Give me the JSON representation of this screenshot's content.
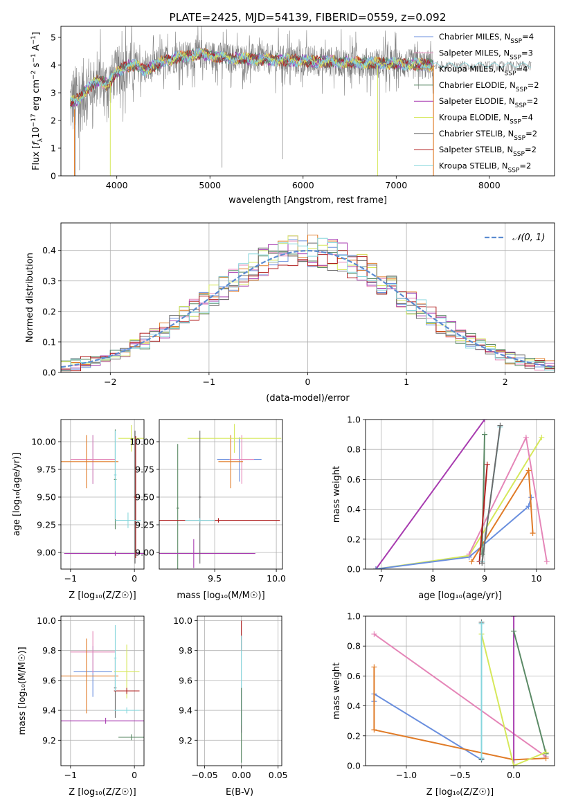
{
  "colors": {
    "Chabrier MILES": "#6a8fde",
    "Salpeter MILES": "#e586b8",
    "Kroupa MILES": "#e07b27",
    "Chabrier ELODIE": "#5b8a66",
    "Salpeter ELODIE": "#a83cb0",
    "Kroupa ELODIE": "#d6e85a",
    "Chabrier STELIB": "#6b6b6b",
    "Salpeter STELIB": "#b01f1f",
    "Kroupa STELIB": "#86d6dc",
    "data": "#808080",
    "gaussian": "#5b8bd0",
    "grid": "#b0b0b0"
  },
  "chart_data": [
    {
      "id": "spectrum",
      "type": "line",
      "title": "PLATE=2425, MJD=54139, FIBERID=0559, z=0.092",
      "xlabel": "wavelength [Angstrom, rest frame]",
      "ylabel": "Flux [f_λ 10^-17 erg cm^-2 s^-1 A^-1]",
      "xlim": [
        3400,
        8700
      ],
      "ylim": [
        0,
        5.4
      ],
      "xticks": [
        "4000",
        "5000",
        "6000",
        "7000",
        "8000"
      ],
      "yticks": [
        "0",
        "1",
        "2",
        "3",
        "4",
        "5"
      ],
      "legend_position": "upper right",
      "model_continuum_x": [
        3500,
        3600,
        3700,
        3800,
        3900,
        4000,
        4100,
        4200,
        4300,
        4500,
        4700,
        4900,
        5200,
        5600,
        6000,
        6500,
        7000,
        7400
      ],
      "model_continuum_y": [
        2.65,
        2.8,
        3.2,
        3.45,
        3.3,
        3.75,
        3.95,
        4.0,
        3.8,
        4.15,
        4.3,
        4.4,
        4.25,
        4.2,
        4.15,
        4.1,
        4.05,
        4.0
      ],
      "series": [
        {
          "name": "Chabrier MILES, N",
          "sub": "SSP",
          "suffix": "=4",
          "model": "Chabrier MILES"
        },
        {
          "name": "Salpeter MILES, N",
          "sub": "SSP",
          "suffix": "=3",
          "model": "Salpeter MILES"
        },
        {
          "name": "Kroupa MILES, N",
          "sub": "SSP",
          "suffix": "=4",
          "model": "Kroupa MILES"
        },
        {
          "name": "Chabrier ELODIE, N",
          "sub": "SSP",
          "suffix": "=2",
          "model": "Chabrier ELODIE"
        },
        {
          "name": "Salpeter ELODIE, N",
          "sub": "SSP",
          "suffix": "=2",
          "model": "Salpeter ELODIE"
        },
        {
          "name": "Kroupa ELODIE, N",
          "sub": "SSP",
          "suffix": "=4",
          "model": "Kroupa ELODIE"
        },
        {
          "name": "Chabrier STELIB, N",
          "sub": "SSP",
          "suffix": "=2",
          "model": "Chabrier STELIB"
        },
        {
          "name": "Salpeter STELIB, N",
          "sub": "SSP",
          "suffix": "=2",
          "model": "Salpeter STELIB"
        },
        {
          "name": "Kroupa STELIB, N",
          "sub": "SSP",
          "suffix": "=2",
          "model": "Kroupa STELIB"
        }
      ]
    },
    {
      "id": "residuals",
      "type": "histogram",
      "xlabel": "(data-model)/error",
      "ylabel": "Normed distribution",
      "xlim": [
        -2.5,
        2.5
      ],
      "ylim": [
        0,
        0.49
      ],
      "xticks": [
        "−2",
        "−1",
        "0",
        "1",
        "2"
      ],
      "yticks": [
        "0.0",
        "0.1",
        "0.2",
        "0.3",
        "0.4"
      ],
      "bin_width": 0.1,
      "legend": "𝒩(0, 1)",
      "legend_position": "upper right",
      "gaussian": {
        "mean": 0,
        "sigma": 1
      }
    },
    {
      "id": "age-vs-Z",
      "type": "errorbar",
      "xlabel": "Z [log₁₀(Z/Z☉)]",
      "ylabel": "age  [log₁₀(age/yr)]",
      "xlim": [
        -1.15,
        0.15
      ],
      "ylim": [
        8.85,
        10.2
      ],
      "xticks": [
        {
          "v": -1,
          "t": "−1"
        },
        {
          "v": 0,
          "t": "0"
        }
      ],
      "yticks": [
        {
          "v": 9.0,
          "t": "9.00"
        },
        {
          "v": 9.25,
          "t": "9.25"
        },
        {
          "v": 9.5,
          "t": "9.50"
        },
        {
          "v": 9.75,
          "t": "9.75"
        },
        {
          "v": 10.0,
          "t": "10.00"
        }
      ],
      "points": [
        {
          "model": "Chabrier MILES",
          "x": -0.65,
          "y": 9.84,
          "xe": 0.3,
          "ye": 0.22
        },
        {
          "model": "Salpeter MILES",
          "x": -0.65,
          "y": 9.84,
          "xe": 0.35,
          "ye": 0.22
        },
        {
          "model": "Kroupa MILES",
          "x": -0.75,
          "y": 9.82,
          "xe": 0.5,
          "ye": 0.24
        },
        {
          "model": "Chabrier ELODIE",
          "x": -0.3,
          "y": 9.66,
          "xe": 0.02,
          "ye": 0.45
        },
        {
          "model": "Salpeter ELODIE",
          "x": -0.3,
          "y": 8.99,
          "xe": 0.8,
          "ye": 0.02
        },
        {
          "model": "Kroupa ELODIE",
          "x": -0.05,
          "y": 10.03,
          "xe": 0.2,
          "ye": 0.12
        },
        {
          "model": "Chabrier STELIB",
          "x": 0.01,
          "y": 9.5,
          "xe": 0.02,
          "ye": 0.6
        },
        {
          "model": "Salpeter STELIB",
          "x": 0.02,
          "y": 9.5,
          "xe": 0.02,
          "ye": 0.55
        },
        {
          "model": "Kroupa STELIB",
          "x": -0.1,
          "y": 9.29,
          "xe": 0.2,
          "ye": 0.07
        },
        {
          "model": "Kroupa STELIB",
          "x": -0.3,
          "y": 9.7,
          "xe": 0.02,
          "ye": 0.4
        }
      ]
    },
    {
      "id": "age-vs-mass",
      "type": "errorbar",
      "xlabel": "mass [log₁₀(M/M☉)]",
      "ylabel": "",
      "xlim": [
        9.05,
        10.05
      ],
      "ylim": [
        8.85,
        10.2
      ],
      "xticks": [
        {
          "v": 9.5,
          "t": "9.5"
        },
        {
          "v": 10.0,
          "t": "10.0"
        }
      ],
      "yticks": [
        {
          "v": 9.0,
          "t": "9.00"
        },
        {
          "v": 9.25,
          "t": "9.25"
        },
        {
          "v": 9.5,
          "t": "9.50"
        },
        {
          "v": 9.75,
          "t": "9.75"
        },
        {
          "v": 10.0,
          "t": "10.00"
        }
      ],
      "points": [
        {
          "model": "Chabrier MILES",
          "x": 9.7,
          "y": 9.84,
          "xe": 0.18,
          "ye": 0.2
        },
        {
          "model": "Salpeter MILES",
          "x": 9.72,
          "y": 9.84,
          "xe": 0.1,
          "ye": 0.22
        },
        {
          "model": "Kroupa MILES",
          "x": 9.63,
          "y": 9.82,
          "xe": 0.1,
          "ye": 0.24
        },
        {
          "model": "Chabrier ELODIE",
          "x": 9.2,
          "y": 9.4,
          "xe": 0.01,
          "ye": 0.58
        },
        {
          "model": "Salpeter ELODIE",
          "x": 9.33,
          "y": 8.99,
          "xe": 0.5,
          "ye": 0.13
        },
        {
          "model": "Kroupa ELODIE",
          "x": 9.66,
          "y": 10.03,
          "xe": 0.38,
          "ye": 0.13
        },
        {
          "model": "Chabrier STELIB",
          "x": 9.38,
          "y": 9.5,
          "xe": 0.01,
          "ye": 0.6
        },
        {
          "model": "Salpeter STELIB",
          "x": 9.53,
          "y": 9.29,
          "xe": 0.5,
          "ye": 0.02
        },
        {
          "model": "Kroupa STELIB",
          "x": 9.38,
          "y": 9.29,
          "xe": 0.12,
          "ye": 0.02
        }
      ]
    },
    {
      "id": "mass-weight-vs-age",
      "type": "line",
      "xlabel": "age  [log₁₀(age/yr)]",
      "ylabel": "mass weight",
      "xlim": [
        6.7,
        10.35
      ],
      "ylim": [
        0,
        1.0
      ],
      "xticks": [
        {
          "v": 7,
          "t": "7"
        },
        {
          "v": 8,
          "t": "8"
        },
        {
          "v": 9,
          "t": "9"
        },
        {
          "v": 10,
          "t": "10"
        }
      ],
      "yticks": [
        {
          "v": 0,
          "t": "0.0"
        },
        {
          "v": 0.2,
          "t": "0.2"
        },
        {
          "v": 0.4,
          "t": "0.4"
        },
        {
          "v": 0.6,
          "t": "0.6"
        },
        {
          "v": 0.8,
          "t": "0.8"
        },
        {
          "v": 1.0,
          "t": "1.0"
        }
      ],
      "series": [
        {
          "model": "Salpeter ELODIE",
          "x": [
            6.9,
            9.0
          ],
          "y": [
            0.0,
            1.0
          ]
        },
        {
          "model": "Kroupa ELODIE",
          "x": [
            6.9,
            8.7,
            10.1
          ],
          "y": [
            0.0,
            0.09,
            0.88
          ]
        },
        {
          "model": "Chabrier MILES",
          "x": [
            6.9,
            8.7,
            9.85,
            9.9
          ],
          "y": [
            0.0,
            0.08,
            0.42,
            0.48
          ]
        },
        {
          "model": "Salpeter MILES",
          "x": [
            8.7,
            9.8,
            10.2
          ],
          "y": [
            0.1,
            0.88,
            0.05
          ]
        },
        {
          "model": "Kroupa MILES",
          "x": [
            8.75,
            9.85,
            9.93
          ],
          "y": [
            0.05,
            0.66,
            0.24
          ]
        },
        {
          "model": "Chabrier ELODIE",
          "x": [
            8.95,
            9.0
          ],
          "y": [
            0.1,
            0.9
          ]
        },
        {
          "model": "Salpeter STELIB",
          "x": [
            8.9,
            9.05
          ],
          "y": [
            0.05,
            0.7
          ]
        },
        {
          "model": "Kroupa STELIB",
          "x": [
            8.95,
            9.3
          ],
          "y": [
            0.05,
            0.95
          ]
        },
        {
          "model": "Chabrier STELIB",
          "x": [
            8.95,
            9.3
          ],
          "y": [
            0.04,
            0.96
          ]
        }
      ]
    },
    {
      "id": "mass-vs-Z",
      "type": "errorbar",
      "xlabel": "Z [log₁₀(Z/Z☉)]",
      "ylabel": "mass [log₁₀(M/M☉)]",
      "xlim": [
        -1.15,
        0.15
      ],
      "ylim": [
        9.03,
        10.03
      ],
      "xticks": [
        {
          "v": -1,
          "t": "−1"
        },
        {
          "v": 0,
          "t": "0"
        }
      ],
      "yticks": [
        {
          "v": 9.2,
          "t": "9.2"
        },
        {
          "v": 9.4,
          "t": "9.4"
        },
        {
          "v": 9.6,
          "t": "9.6"
        },
        {
          "v": 9.8,
          "t": "9.8"
        },
        {
          "v": 10.0,
          "t": "10.0"
        }
      ],
      "points": [
        {
          "model": "Chabrier MILES",
          "x": -0.65,
          "y": 9.66,
          "xe": 0.3,
          "ye": 0.17
        },
        {
          "model": "Salpeter MILES",
          "x": -0.65,
          "y": 9.79,
          "xe": 0.35,
          "ye": 0.14
        },
        {
          "model": "Kroupa MILES",
          "x": -0.75,
          "y": 9.63,
          "xe": 0.5,
          "ye": 0.25
        },
        {
          "model": "Chabrier ELODIE",
          "x": -0.05,
          "y": 9.22,
          "xe": 0.2,
          "ye": 0.02
        },
        {
          "model": "Salpeter ELODIE",
          "x": -0.45,
          "y": 9.33,
          "xe": 0.85,
          "ye": 0.02
        },
        {
          "model": "Kroupa ELODIE",
          "x": -0.12,
          "y": 9.66,
          "xe": 0.2,
          "ye": 0.18
        },
        {
          "model": "Chabrier STELIB",
          "x": -0.3,
          "y": 9.55,
          "xe": 0.02,
          "ye": 0.2
        },
        {
          "model": "Salpeter STELIB",
          "x": -0.12,
          "y": 9.53,
          "xe": 0.2,
          "ye": 0.02
        },
        {
          "model": "Kroupa STELIB",
          "x": -0.12,
          "y": 9.4,
          "xe": 0.2,
          "ye": 0.02
        },
        {
          "model": "Kroupa STELIB",
          "x": -0.3,
          "y": 9.75,
          "xe": 0.02,
          "ye": 0.22
        }
      ]
    },
    {
      "id": "mass-vs-EBV",
      "type": "errorbar",
      "xlabel": "E(B-V)",
      "ylabel": "",
      "xlim": [
        -0.06,
        0.055
      ],
      "ylim": [
        9.03,
        10.03
      ],
      "xticks": [
        {
          "v": -0.05,
          "t": "−0.05"
        },
        {
          "v": 0,
          "t": "0.00"
        },
        {
          "v": 0.05,
          "t": "0.05"
        }
      ],
      "yticks": [
        {
          "v": 9.2,
          "t": "9.2"
        },
        {
          "v": 9.4,
          "t": "9.4"
        },
        {
          "v": 9.6,
          "t": "9.6"
        },
        {
          "v": 9.8,
          "t": "9.8"
        },
        {
          "v": 10.0,
          "t": "10.0"
        }
      ],
      "points": [
        {
          "model": "Salpeter STELIB",
          "x": 0,
          "y": 9.9,
          "xe": 0,
          "ye": 0.1
        },
        {
          "model": "Salpeter ELODIE",
          "x": 0,
          "y": 9.4,
          "xe": 0,
          "ye": 0.15
        },
        {
          "model": "Kroupa STELIB",
          "x": 0,
          "y": 9.6,
          "xe": 0,
          "ye": 0.3
        },
        {
          "model": "Chabrier ELODIE",
          "x": 0,
          "y": 9.3,
          "xe": 0,
          "ye": 0.25
        }
      ]
    },
    {
      "id": "mass-weight-vs-Z",
      "type": "line",
      "xlabel": "Z [log₁₀(Z/Z☉)]",
      "ylabel": "mass weight",
      "xlim": [
        -1.38,
        0.38
      ],
      "ylim": [
        0,
        1.0
      ],
      "xticks": [
        {
          "v": -1,
          "t": "−1.0"
        },
        {
          "v": -0.5,
          "t": "−0.5"
        },
        {
          "v": 0,
          "t": "0.0"
        }
      ],
      "yticks": [
        {
          "v": 0,
          "t": "0.0"
        },
        {
          "v": 0.2,
          "t": "0.2"
        },
        {
          "v": 0.4,
          "t": "0.4"
        },
        {
          "v": 0.6,
          "t": "0.6"
        },
        {
          "v": 0.8,
          "t": "0.8"
        },
        {
          "v": 1.0,
          "t": "1.0"
        }
      ],
      "series": [
        {
          "model": "Salpeter MILES",
          "x": [
            -1.3,
            0.3
          ],
          "y": [
            0.88,
            0.06
          ]
        },
        {
          "model": "Chabrier MILES",
          "x": [
            -1.3,
            -1.3,
            -0.3,
            -0.3
          ],
          "y": [
            0.43,
            0.48,
            0.04,
            0.05
          ]
        },
        {
          "model": "Kroupa MILES",
          "x": [
            -1.3,
            -1.3,
            0.0,
            0.3
          ],
          "y": [
            0.66,
            0.24,
            0.04,
            0.05
          ]
        },
        {
          "model": "Salpeter ELODIE",
          "x": [
            0.0,
            0.0
          ],
          "y": [
            0.0,
            1.0
          ]
        },
        {
          "model": "Chabrier ELODIE",
          "x": [
            0.0,
            0.3,
            0.3
          ],
          "y": [
            0.9,
            0.08,
            0.09
          ]
        },
        {
          "model": "Kroupa ELODIE",
          "x": [
            -0.3,
            0.0,
            0.3
          ],
          "y": [
            0.88,
            0.0,
            0.09
          ]
        },
        {
          "model": "Chabrier STELIB",
          "x": [
            -0.3,
            -0.3
          ],
          "y": [
            0.04,
            0.96
          ]
        },
        {
          "model": "Kroupa STELIB",
          "x": [
            -0.3,
            -0.3
          ],
          "y": [
            0.05,
            0.95
          ]
        }
      ]
    }
  ]
}
